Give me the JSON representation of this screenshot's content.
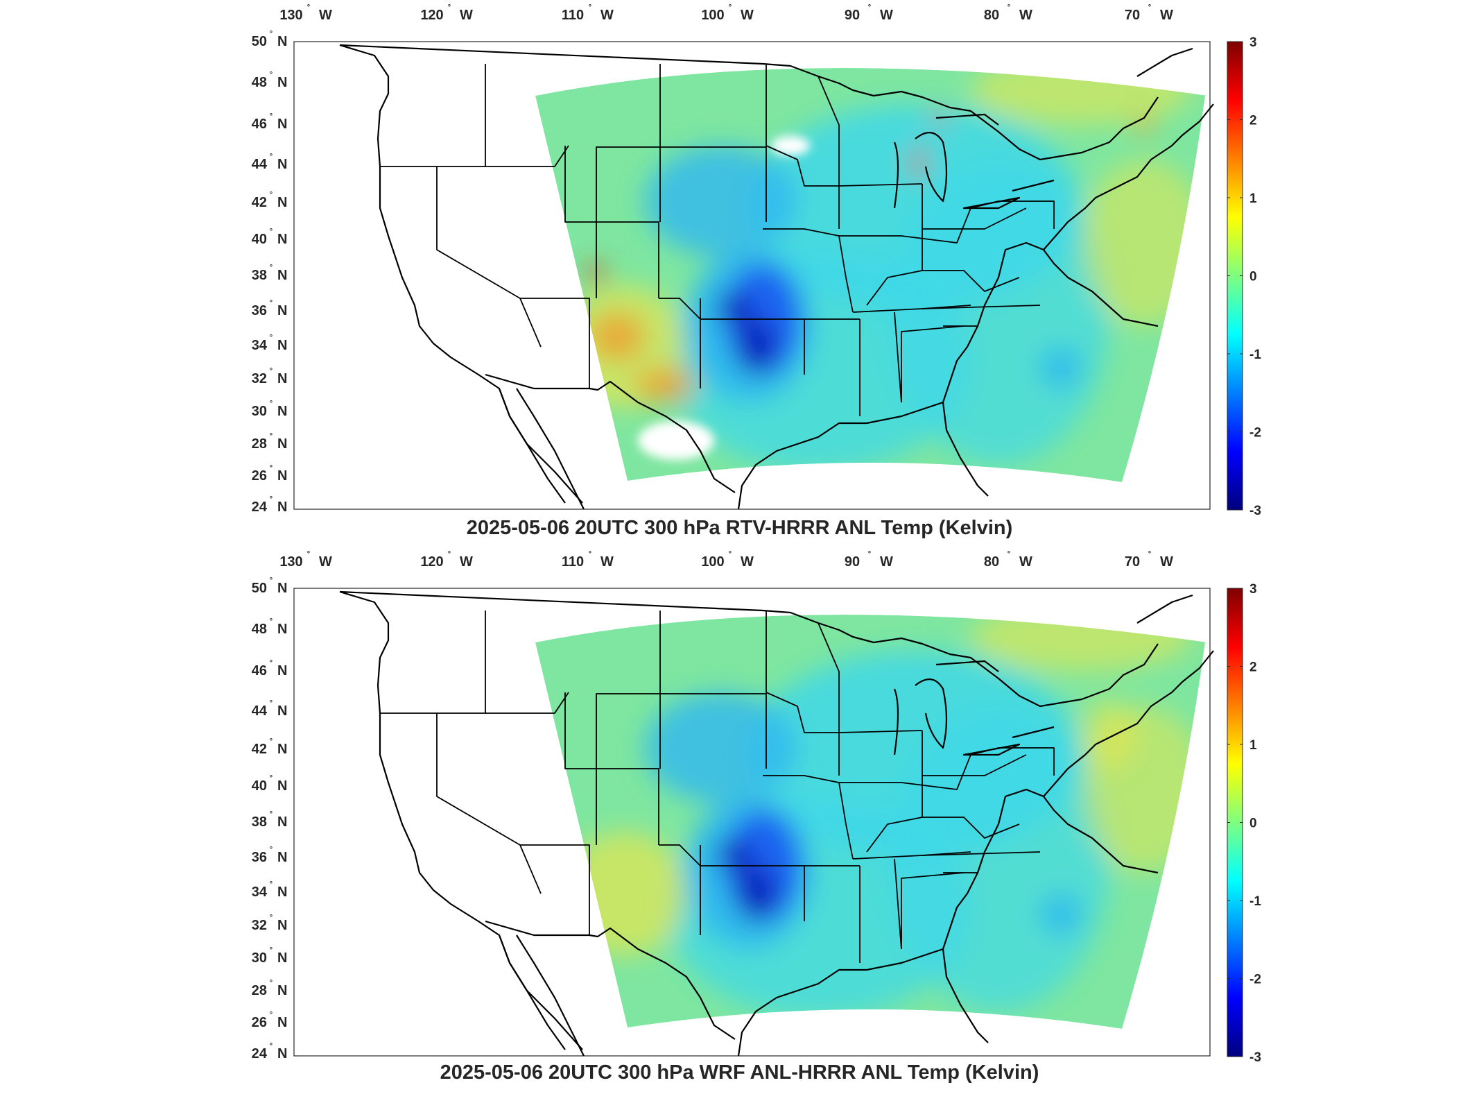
{
  "figure": {
    "panels": [
      {
        "title": "2025-05-06 20UTC 300 hPa RTV-HRRR ANL Temp (Kelvin)",
        "variant": "rtv"
      },
      {
        "title": "2025-05-06 20UTC 300 hPa WRF ANL-HRRR ANL Temp (Kelvin)",
        "variant": "wrf"
      }
    ],
    "lon_ticks": [
      {
        "num": "130",
        "hem": "W"
      },
      {
        "num": "120",
        "hem": "W"
      },
      {
        "num": "110",
        "hem": "W"
      },
      {
        "num": "100",
        "hem": "W"
      },
      {
        "num": "90",
        "hem": "W"
      },
      {
        "num": "80",
        "hem": "W"
      },
      {
        "num": "70",
        "hem": "W"
      }
    ],
    "lat_ticks": [
      {
        "num": "50",
        "hem": "N"
      },
      {
        "num": "48",
        "hem": "N"
      },
      {
        "num": "46",
        "hem": "N"
      },
      {
        "num": "44",
        "hem": "N"
      },
      {
        "num": "42",
        "hem": "N"
      },
      {
        "num": "40",
        "hem": "N"
      },
      {
        "num": "38",
        "hem": "N"
      },
      {
        "num": "36",
        "hem": "N"
      },
      {
        "num": "34",
        "hem": "N"
      },
      {
        "num": "32",
        "hem": "N"
      },
      {
        "num": "30",
        "hem": "N"
      },
      {
        "num": "28",
        "hem": "N"
      },
      {
        "num": "26",
        "hem": "N"
      },
      {
        "num": "24",
        "hem": "N"
      }
    ],
    "colorbar": {
      "ticks": [
        "3",
        "2",
        "1",
        "0",
        "-1",
        "-2",
        "-3"
      ],
      "range": [
        -3,
        3
      ],
      "colormap": "jet",
      "colors": [
        "#00007f",
        "#0000ff",
        "#007fff",
        "#00ffff",
        "#7fff7f",
        "#ffff00",
        "#ff7f00",
        "#ff0000",
        "#7f0000"
      ]
    },
    "field_colors": {
      "base": "#7ee6a0",
      "cyan": "#3fd8e8",
      "light_blue": "#2fb8f0",
      "blue": "#1e60f0",
      "deep_blue": "#1020b8",
      "yellow": "#e6e650",
      "orange": "#f0a030",
      "red": "#e04020",
      "missing": "#ffffff",
      "outline": "#000000"
    }
  }
}
